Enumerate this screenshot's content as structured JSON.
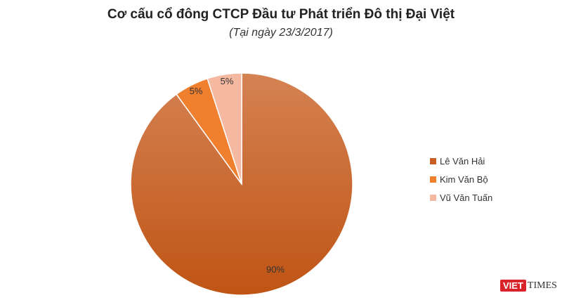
{
  "chart_data": {
    "type": "pie",
    "title": "Cơ cấu cổ đông CTCP Đầu tư Phát triển Đô thị Đại Việt",
    "subtitle": "(Tại ngày 23/3/2017)",
    "categories": [
      "Lê Văn Hải",
      "Kim Văn Bộ",
      "Vũ Văn Tuấn"
    ],
    "values": [
      90,
      5,
      5
    ],
    "labels": [
      "90%",
      "5%",
      "5%"
    ],
    "colors": [
      "#c85e22",
      "#f07f2e",
      "#f5b9a2"
    ],
    "start_angle": "top, clockwise",
    "legend_position": "right"
  },
  "watermark": {
    "text": "VIETTIMES",
    "part1": "VIET",
    "part2": "TIMES",
    "color": "#d9232a"
  }
}
